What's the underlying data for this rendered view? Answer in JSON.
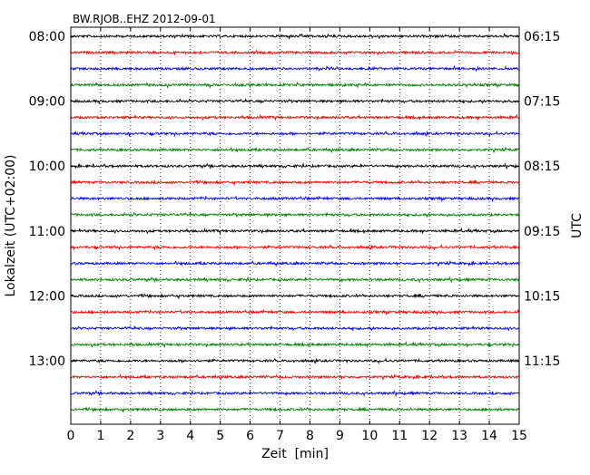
{
  "chart_data": {
    "type": "line",
    "title": "BW.RJOB..EHZ 2012-09-01",
    "xlabel": "Zeit  [min]",
    "ylabel_left": "Lokalzeit (UTC+02:00)",
    "ylabel_right": "UTC",
    "xlim": [
      0,
      15
    ],
    "x_ticks": [
      0,
      1,
      2,
      3,
      4,
      5,
      6,
      7,
      8,
      9,
      10,
      11,
      12,
      13,
      14,
      15
    ],
    "x_grid": "vertical dotted",
    "trace_interval_min": 15,
    "trace_count": 24,
    "trace_color_cycle": [
      "#000000",
      "#ff0000",
      "#0000ff",
      "#008000"
    ],
    "left_tick_labels": [
      "08:00",
      "09:00",
      "10:00",
      "11:00",
      "12:00",
      "13:00"
    ],
    "right_tick_labels": [
      "06:15",
      "07:15",
      "08:15",
      "09:15",
      "10:15",
      "11:15"
    ],
    "hour_tick_trace_indices": [
      0,
      4,
      8,
      12,
      16,
      20
    ]
  }
}
